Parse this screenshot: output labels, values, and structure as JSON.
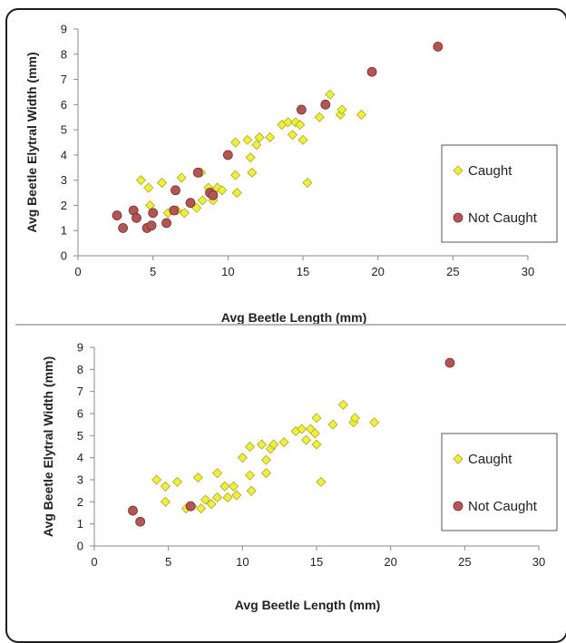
{
  "colors": {
    "caught": "#f0f03a",
    "caught_stroke": "#a8a82a",
    "not_caught": "#b25555",
    "not_caught_stroke": "#7a3030",
    "axis": "#8a8a8a",
    "frame": "#1d1d1d"
  },
  "chart_data": [
    {
      "type": "scatter",
      "xlabel": "Avg Beetle Length (mm)",
      "ylabel": "Avg Beetle Elytral Width (mm)",
      "xlim": [
        0,
        30
      ],
      "ylim": [
        0,
        9
      ],
      "xticks": [
        0,
        5,
        10,
        15,
        20,
        25,
        30
      ],
      "yticks": [
        0,
        1,
        2,
        3,
        4,
        5,
        6,
        7,
        8,
        9
      ],
      "grid": false,
      "legend_position": "right",
      "series": [
        {
          "name": "Caught",
          "marker": "diamond",
          "color_key": "caught",
          "points": [
            [
              4.2,
              3.0
            ],
            [
              4.7,
              2.7
            ],
            [
              4.8,
              2.0
            ],
            [
              5.6,
              2.9
            ],
            [
              6.0,
              1.7
            ],
            [
              6.6,
              1.8
            ],
            [
              6.9,
              3.1
            ],
            [
              7.1,
              1.7
            ],
            [
              7.5,
              2.1
            ],
            [
              7.9,
              1.9
            ],
            [
              8.2,
              3.3
            ],
            [
              8.3,
              2.2
            ],
            [
              8.7,
              2.7
            ],
            [
              9.0,
              2.2
            ],
            [
              9.3,
              2.7
            ],
            [
              9.6,
              2.6
            ],
            [
              10.0,
              4.0
            ],
            [
              10.5,
              4.5
            ],
            [
              10.5,
              3.2
            ],
            [
              10.6,
              2.5
            ],
            [
              11.3,
              4.6
            ],
            [
              11.5,
              3.9
            ],
            [
              11.6,
              3.3
            ],
            [
              11.9,
              4.4
            ],
            [
              12.1,
              4.7
            ],
            [
              12.8,
              4.7
            ],
            [
              13.6,
              5.2
            ],
            [
              14.0,
              5.3
            ],
            [
              14.3,
              4.8
            ],
            [
              14.5,
              5.3
            ],
            [
              14.8,
              5.2
            ],
            [
              15.0,
              4.6
            ],
            [
              15.3,
              2.9
            ],
            [
              16.1,
              5.5
            ],
            [
              16.8,
              6.4
            ],
            [
              17.5,
              5.6
            ],
            [
              17.6,
              5.8
            ],
            [
              18.9,
              5.6
            ]
          ]
        },
        {
          "name": "Not Caught",
          "marker": "circle",
          "color_key": "not_caught",
          "points": [
            [
              2.6,
              1.6
            ],
            [
              3.0,
              1.1
            ],
            [
              3.7,
              1.8
            ],
            [
              3.9,
              1.5
            ],
            [
              4.6,
              1.1
            ],
            [
              4.9,
              1.2
            ],
            [
              5.0,
              1.7
            ],
            [
              5.9,
              1.3
            ],
            [
              6.4,
              1.8
            ],
            [
              6.5,
              2.6
            ],
            [
              7.5,
              2.1
            ],
            [
              8.0,
              3.3
            ],
            [
              8.8,
              2.5
            ],
            [
              9.0,
              2.4
            ],
            [
              10.0,
              4.0
            ],
            [
              14.9,
              5.8
            ],
            [
              16.5,
              6.0
            ],
            [
              19.6,
              7.3
            ],
            [
              24.0,
              8.3
            ]
          ]
        }
      ]
    },
    {
      "type": "scatter",
      "xlabel": "Avg Beetle Length (mm)",
      "ylabel": "Avg Beetle Elytral Width (mm)",
      "xlim": [
        0,
        30
      ],
      "ylim": [
        0,
        9
      ],
      "xticks": [
        0,
        5,
        10,
        15,
        20,
        25,
        30
      ],
      "yticks": [
        0,
        1,
        2,
        3,
        4,
        5,
        6,
        7,
        8,
        9
      ],
      "grid": false,
      "legend_position": "right",
      "series": [
        {
          "name": "Caught",
          "marker": "diamond",
          "color_key": "caught",
          "points": [
            [
              4.2,
              3.0
            ],
            [
              4.8,
              2.7
            ],
            [
              4.8,
              2.0
            ],
            [
              5.6,
              2.9
            ],
            [
              6.2,
              1.7
            ],
            [
              6.6,
              1.8
            ],
            [
              7.0,
              3.1
            ],
            [
              7.2,
              1.7
            ],
            [
              7.5,
              2.1
            ],
            [
              7.9,
              1.9
            ],
            [
              8.3,
              3.3
            ],
            [
              8.3,
              2.2
            ],
            [
              8.8,
              2.7
            ],
            [
              9.0,
              2.2
            ],
            [
              9.4,
              2.7
            ],
            [
              9.6,
              2.3
            ],
            [
              10.0,
              4.0
            ],
            [
              10.5,
              4.5
            ],
            [
              10.5,
              3.2
            ],
            [
              10.6,
              2.5
            ],
            [
              11.3,
              4.6
            ],
            [
              11.6,
              3.9
            ],
            [
              11.6,
              3.3
            ],
            [
              11.9,
              4.4
            ],
            [
              12.1,
              4.6
            ],
            [
              12.8,
              4.7
            ],
            [
              13.6,
              5.2
            ],
            [
              14.0,
              5.3
            ],
            [
              14.3,
              4.8
            ],
            [
              14.6,
              5.3
            ],
            [
              14.9,
              5.1
            ],
            [
              15.0,
              5.8
            ],
            [
              15.0,
              4.6
            ],
            [
              15.3,
              2.9
            ],
            [
              16.1,
              5.5
            ],
            [
              16.8,
              6.4
            ],
            [
              17.5,
              5.6
            ],
            [
              17.6,
              5.8
            ],
            [
              18.9,
              5.6
            ]
          ]
        },
        {
          "name": "Not Caught",
          "marker": "circle",
          "color_key": "not_caught",
          "points": [
            [
              2.6,
              1.6
            ],
            [
              3.1,
              1.1
            ],
            [
              6.5,
              1.8
            ],
            [
              24.0,
              8.3
            ]
          ]
        }
      ]
    }
  ]
}
